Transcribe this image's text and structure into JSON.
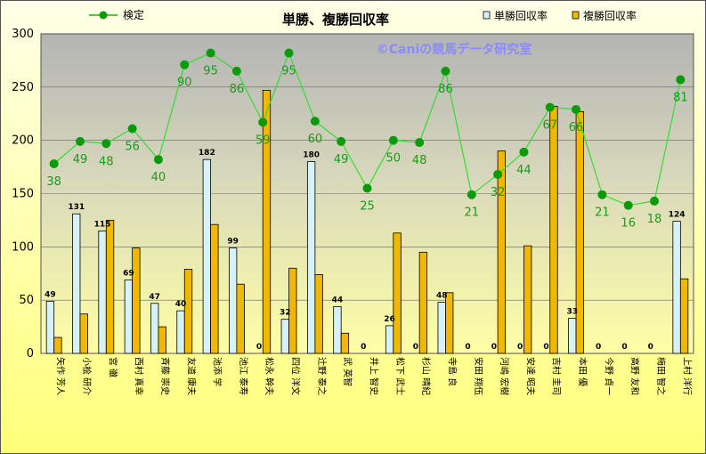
{
  "chart_data": {
    "type": "bar",
    "title": "単勝、複勝回収率",
    "watermark": "©Caniの競馬データ研究室",
    "legend": {
      "line": "検定",
      "bar1": "単勝回収率",
      "bar2": "複勝回収率"
    },
    "ylim": [
      0,
      300
    ],
    "yticks": [
      "0",
      "50",
      "100",
      "150",
      "200",
      "250",
      "300"
    ],
    "grid": true,
    "categories": [
      "矢作 芳人",
      "小桧 研介",
      "宮 徹",
      "西村 真幸",
      "斉藤 崇史",
      "友道 康夫",
      "池添 学",
      "池江 泰寿",
      "松永 幹夫",
      "四位 洋文",
      "辻野 泰之",
      "武 英智",
      "井上 智史",
      "松下 武士",
      "杉山 晴紀",
      "寺島 良",
      "安田 翔伍",
      "河嶋 宏樹",
      "安達 昭夫",
      "吉村 圭司",
      "本田 優",
      "今野 貞一",
      "高野 友和",
      "梅田 智之",
      "上村 洋行"
    ],
    "series": [
      {
        "name": "単勝回収率",
        "color": "#d6f2f6",
        "values": [
          49,
          131,
          115,
          69,
          47,
          40,
          182,
          99,
          0,
          32,
          180,
          44,
          0,
          26,
          0,
          48,
          0,
          0,
          0,
          0,
          33,
          0,
          0,
          0,
          124
        ],
        "labels": [
          "49",
          "131",
          "115",
          "69",
          "47",
          "40",
          "182",
          "99",
          "0",
          "32",
          "180",
          "44",
          "0",
          "26",
          "0",
          "48",
          "0",
          "0",
          "0",
          "0",
          "33",
          "0",
          "0",
          "0",
          "124"
        ]
      },
      {
        "name": "複勝回収率",
        "color": "#f0b800",
        "values": [
          15,
          37,
          125,
          99,
          25,
          79,
          121,
          65,
          247,
          80,
          74,
          19,
          0,
          113,
          95,
          57,
          0,
          190,
          101,
          232,
          227,
          0,
          0,
          0,
          70
        ]
      },
      {
        "name": "検定",
        "color": "#19b319",
        "values": [
          178,
          199,
          197,
          211,
          182,
          271,
          282,
          265,
          217,
          282,
          218,
          199,
          155,
          200,
          198,
          265,
          149,
          168,
          189,
          231,
          229,
          149,
          139,
          143,
          257
        ],
        "labels": [
          "38",
          "49",
          "48",
          "56",
          "40",
          "90",
          "95",
          "86",
          "59",
          "95",
          "60",
          "49",
          "25",
          "50",
          "48",
          "86",
          "21",
          "32",
          "44",
          "67",
          "66",
          "21",
          "16",
          "18",
          "81"
        ]
      }
    ]
  }
}
